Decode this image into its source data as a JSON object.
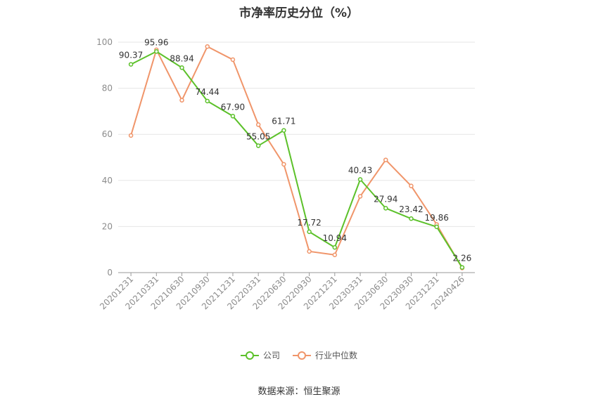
{
  "chart_data": {
    "type": "line",
    "title": "市净率历史分位（%）",
    "categories": [
      "20201231",
      "20210331",
      "20210630",
      "20210930",
      "20211231",
      "20220331",
      "20220630",
      "20220930",
      "20221231",
      "20230331",
      "20230630",
      "20230930",
      "20231231",
      "20240426"
    ],
    "ylim": [
      0,
      100
    ],
    "yticks": [
      "0",
      "20",
      "40",
      "60",
      "80",
      "100"
    ],
    "ytick_values": [
      0,
      20,
      40,
      60,
      80,
      100
    ],
    "grid": true,
    "legend_position": "bottom",
    "series": [
      {
        "name": "公司",
        "color": "#5cc12a",
        "values": [
          90.37,
          95.96,
          88.94,
          74.44,
          67.9,
          55.05,
          61.71,
          17.72,
          10.94,
          40.43,
          27.94,
          23.42,
          19.86,
          2.26
        ],
        "labels": [
          "90.37",
          "95.96",
          "88.94",
          "74.44",
          "67.90",
          "55.05",
          "61.71",
          "17.72",
          "10.94",
          "40.43",
          "27.94",
          "23.42",
          "19.86",
          "2.26"
        ]
      },
      {
        "name": "行业中位数",
        "color": "#f0956a",
        "values": [
          59.5,
          96.7,
          74.8,
          98.1,
          92.4,
          64.2,
          47.0,
          9.2,
          7.7,
          33.1,
          48.9,
          37.6,
          20.9,
          2.0
        ]
      }
    ]
  },
  "source": "数据来源：恒生聚源"
}
